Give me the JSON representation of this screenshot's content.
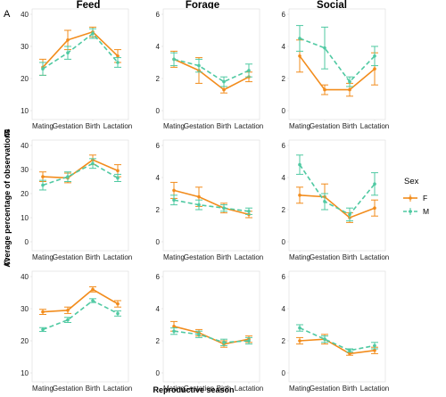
{
  "chart_data": {
    "type": "line",
    "xlabel": "Reproductive season",
    "ylabel": "Average percentage of observations",
    "categories": [
      "Mating",
      "Gestation",
      "Birth",
      "Lactation"
    ],
    "columns": [
      "Feed",
      "Forage",
      "Social"
    ],
    "rows": [
      "A",
      "B",
      "C"
    ],
    "legend": {
      "title": "Sex",
      "placement": "right",
      "entries": [
        {
          "name": "F",
          "color": "#f28c1c",
          "dashed": false
        },
        {
          "name": "M",
          "color": "#4fc9a2",
          "dashed": true
        }
      ]
    },
    "panels": [
      {
        "row": "A",
        "column": "Feed",
        "ylim": [
          10,
          40
        ],
        "yticks": [
          10,
          20,
          30,
          40
        ],
        "series": [
          {
            "name": "F",
            "values": [
              23.5,
              32,
              34.5,
              27
            ],
            "err": [
              2.5,
              3,
              1.5,
              2
            ]
          },
          {
            "name": "M",
            "values": [
              23,
              28,
              34,
              25
            ],
            "err": [
              2,
              2,
              1.5,
              1.5
            ]
          }
        ]
      },
      {
        "row": "A",
        "column": "Forage",
        "ylim": [
          0,
          6
        ],
        "yticks": [
          0,
          2,
          4,
          6
        ],
        "series": [
          {
            "name": "F",
            "values": [
              3.2,
              2.5,
              1.3,
              2.1
            ],
            "err": [
              0.5,
              0.8,
              0.2,
              0.3
            ]
          },
          {
            "name": "M",
            "values": [
              3.2,
              2.8,
              1.8,
              2.5
            ],
            "err": [
              0.4,
              0.4,
              0.3,
              0.4
            ]
          }
        ]
      },
      {
        "row": "A",
        "column": "Social",
        "ylim": [
          0,
          6
        ],
        "yticks": [
          0,
          2,
          4,
          6
        ],
        "series": [
          {
            "name": "F",
            "values": [
              3.4,
              1.3,
              1.3,
              2.6
            ],
            "err": [
              1.0,
              0.3,
              0.4,
              1.0
            ]
          },
          {
            "name": "M",
            "values": [
              4.5,
              3.9,
              1.8,
              3.4
            ],
            "err": [
              0.8,
              1.3,
              0.3,
              0.6
            ]
          }
        ]
      },
      {
        "row": "B",
        "column": "Feed",
        "ylim": [
          0,
          40
        ],
        "yticks": [
          0,
          10,
          20,
          30,
          40
        ],
        "series": [
          {
            "name": "F",
            "values": [
              27,
              26.5,
              34,
              29.5
            ],
            "err": [
              2,
              2,
              2,
              2.5
            ]
          },
          {
            "name": "M",
            "values": [
              23.5,
              27,
              32.5,
              26.5
            ],
            "err": [
              2,
              2,
              2,
              1.5
            ]
          }
        ]
      },
      {
        "row": "B",
        "column": "Forage",
        "ylim": [
          0,
          6
        ],
        "yticks": [
          0,
          2,
          4,
          6
        ],
        "series": [
          {
            "name": "F",
            "values": [
              3.2,
              2.8,
              2.1,
              1.7
            ],
            "err": [
              0.5,
              0.6,
              0.3,
              0.2
            ]
          },
          {
            "name": "M",
            "values": [
              2.6,
              2.3,
              2.1,
              1.9
            ],
            "err": [
              0.3,
              0.3,
              0.2,
              0.2
            ]
          }
        ]
      },
      {
        "row": "B",
        "column": "Social",
        "ylim": [
          0,
          6
        ],
        "yticks": [
          0,
          2,
          4,
          6
        ],
        "series": [
          {
            "name": "F",
            "values": [
              2.9,
              2.8,
              1.5,
              2.1
            ],
            "err": [
              0.5,
              0.8,
              0.3,
              0.5
            ]
          },
          {
            "name": "M",
            "values": [
              4.8,
              2.5,
              1.7,
              3.6
            ],
            "err": [
              0.6,
              0.5,
              0.4,
              0.7
            ]
          }
        ]
      },
      {
        "row": "C",
        "column": "Feed",
        "ylim": [
          10,
          40
        ],
        "yticks": [
          10,
          20,
          30,
          40
        ],
        "series": [
          {
            "name": "F",
            "values": [
              29,
              29.5,
              36,
              31.5
            ],
            "err": [
              0.8,
              1,
              0.8,
              1
            ]
          },
          {
            "name": "M",
            "values": [
              23.5,
              26.5,
              32.5,
              28.5
            ],
            "err": [
              0.6,
              0.8,
              0.6,
              0.8
            ]
          }
        ]
      },
      {
        "row": "C",
        "column": "Forage",
        "ylim": [
          0,
          6
        ],
        "yticks": [
          0,
          2,
          4,
          6
        ],
        "series": [
          {
            "name": "F",
            "values": [
              2.9,
              2.5,
              1.8,
              2.1
            ],
            "err": [
              0.3,
              0.2,
              0.2,
              0.2
            ]
          },
          {
            "name": "M",
            "values": [
              2.6,
              2.4,
              1.9,
              2.0
            ],
            "err": [
              0.2,
              0.2,
              0.2,
              0.2
            ]
          }
        ]
      },
      {
        "row": "C",
        "column": "Social",
        "ylim": [
          0,
          6
        ],
        "yticks": [
          0,
          2,
          4,
          6
        ],
        "series": [
          {
            "name": "F",
            "values": [
              2.0,
              2.1,
              1.2,
              1.4
            ],
            "err": [
              0.2,
              0.3,
              0.1,
              0.2
            ]
          },
          {
            "name": "M",
            "values": [
              2.8,
              2.1,
              1.4,
              1.7
            ],
            "err": [
              0.2,
              0.2,
              0.1,
              0.2
            ]
          }
        ]
      }
    ]
  }
}
